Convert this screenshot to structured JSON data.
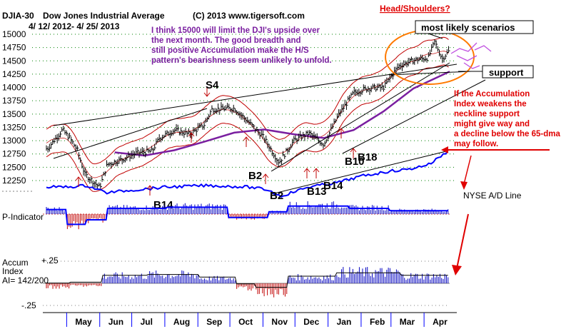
{
  "header": {
    "symbol": "DJIA-30",
    "name": "Dow Jones Industrial Average",
    "copyright": "(C) 2013 www.tigersoft.com",
    "date_range": "4/ 12/ 2012- 4/ 25/ 2013"
  },
  "annotations": {
    "commentary_lines": [
      "I think 15000 will limit the DJI's upside over",
      "the next month.  The good breadth and",
      "still positive Accumulation make the H/S",
      "pattern's bearishness seem unlikely to unfold."
    ],
    "head_shoulders": "Head/Shoulders?",
    "most_likely": "most likely scenarios",
    "support": "support",
    "warning_lines": [
      "If the Accumulation",
      "Index weakens the",
      "neckline support",
      "might give way and",
      "a decline below the 65-dma",
      "may follow."
    ],
    "ad_line_label": "NYSE A/D Line"
  },
  "signals": {
    "s4": "S4",
    "b2_upper": "B2",
    "b2_lower": "B2",
    "b14_left": "B14",
    "b13": "B13",
    "b14_right": "B14",
    "b10": "B10",
    "b18": "B18"
  },
  "panels": {
    "p_indicator": "P-Indicator",
    "accum_line1": "Accum",
    "accum_line2": "Index",
    "accum_line3": "AI= 142/200",
    "accum_top": "+.25",
    "accum_bottom": "-.25"
  },
  "colors": {
    "price_bars": "#000000",
    "bollinger": "#c00000",
    "ma65": "#7a1fa0",
    "ad_line": "#0000ff",
    "positive_bars": "#0000c0",
    "negative_bars": "#c00000",
    "annotation_red": "#e00000",
    "annotation_orange": "#ff7a00",
    "annotation_purple": "#7a1fa0"
  },
  "chart_data": {
    "type": "line",
    "title": "DJIA-30 Dow Jones Industrial Average",
    "xlabel": "",
    "ylabel": "",
    "ylim": [
      11900,
      15100
    ],
    "y_ticks": [
      15000,
      14750,
      14500,
      14250,
      14000,
      13750,
      13500,
      13250,
      13000,
      12750,
      12500,
      12250
    ],
    "months": [
      "May",
      "Jun",
      "Jul",
      "Aug",
      "Sep",
      "Oct",
      "Nov",
      "Dec",
      "Jan",
      "Feb",
      "Mar",
      "Apr"
    ],
    "price_close_weekly": [
      {
        "date": "2012-04-13",
        "close": 12850
      },
      {
        "date": "2012-04-27",
        "close": 13200
      },
      {
        "date": "2012-05-04",
        "close": 13050
      },
      {
        "date": "2012-05-11",
        "close": 12820
      },
      {
        "date": "2012-05-18",
        "close": 12370
      },
      {
        "date": "2012-06-01",
        "close": 12120
      },
      {
        "date": "2012-06-08",
        "close": 12550
      },
      {
        "date": "2012-06-22",
        "close": 12650
      },
      {
        "date": "2012-07-06",
        "close": 12770
      },
      {
        "date": "2012-07-20",
        "close": 12800
      },
      {
        "date": "2012-07-27",
        "close": 13050
      },
      {
        "date": "2012-08-10",
        "close": 13200
      },
      {
        "date": "2012-08-24",
        "close": 13120
      },
      {
        "date": "2012-09-07",
        "close": 13300
      },
      {
        "date": "2012-09-14",
        "close": 13590
      },
      {
        "date": "2012-10-05",
        "close": 13610
      },
      {
        "date": "2012-10-19",
        "close": 13340
      },
      {
        "date": "2012-11-02",
        "close": 13050
      },
      {
        "date": "2012-11-16",
        "close": 12590
      },
      {
        "date": "2012-11-30",
        "close": 13000
      },
      {
        "date": "2012-12-14",
        "close": 13140
      },
      {
        "date": "2012-12-28",
        "close": 12930
      },
      {
        "date": "2013-01-11",
        "close": 13490
      },
      {
        "date": "2013-01-25",
        "close": 13900
      },
      {
        "date": "2013-02-08",
        "close": 13990
      },
      {
        "date": "2013-02-22",
        "close": 14000
      },
      {
        "date": "2013-03-08",
        "close": 14400
      },
      {
        "date": "2013-03-22",
        "close": 14510
      },
      {
        "date": "2013-04-05",
        "close": 14560
      },
      {
        "date": "2013-04-11",
        "close": 14860
      },
      {
        "date": "2013-04-18",
        "close": 14540
      },
      {
        "date": "2013-04-25",
        "close": 14700
      }
    ],
    "ma65": [
      {
        "date": "2012-06-15",
        "value": 12780
      },
      {
        "date": "2012-07-13",
        "value": 12720
      },
      {
        "date": "2012-08-10",
        "value": 12820
      },
      {
        "date": "2012-09-07",
        "value": 12980
      },
      {
        "date": "2012-10-05",
        "value": 13150
      },
      {
        "date": "2012-11-02",
        "value": 13210
      },
      {
        "date": "2012-11-30",
        "value": 13120
      },
      {
        "date": "2012-12-28",
        "value": 13050
      },
      {
        "date": "2013-01-25",
        "value": 13200
      },
      {
        "date": "2013-02-22",
        "value": 13550
      },
      {
        "date": "2013-03-22",
        "value": 13980
      },
      {
        "date": "2013-04-25",
        "value": 14300
      }
    ],
    "indicator_panels": [
      "P-Indicator",
      "Accum Index"
    ],
    "accum_index_range": [
      -0.25,
      0.25
    ],
    "accum_index_reading": "AI= 142/200"
  }
}
